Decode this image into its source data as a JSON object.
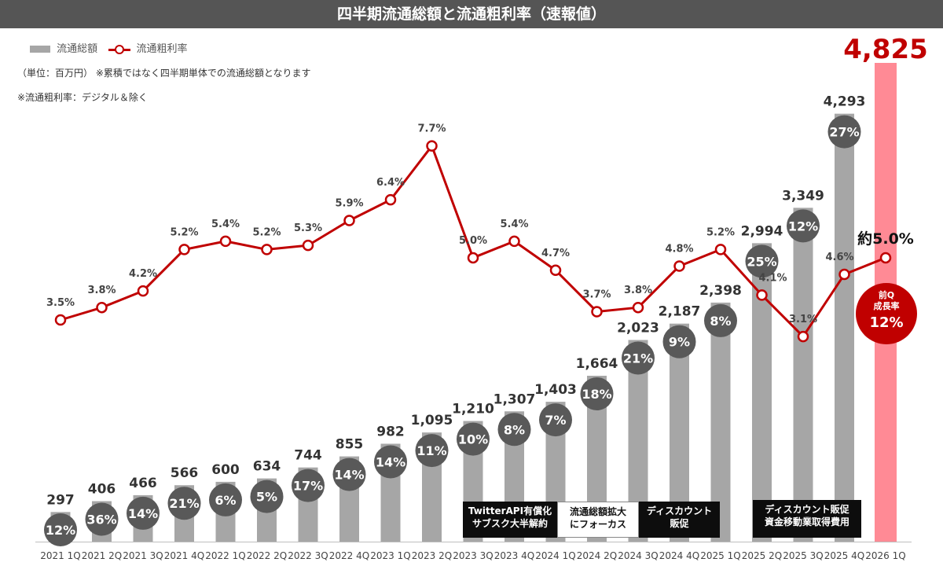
{
  "header": {
    "title": "四半期流通総額と流通粗利率（速報値）"
  },
  "legend": {
    "bar_label": "流通総額",
    "line_label": "流通粗利率"
  },
  "notes": {
    "unit_note": "（単位：百万円）  ※累積ではなく四半期単体での流通総額となります",
    "rate_note": "※流通粗利率：デジタル＆除く"
  },
  "colors": {
    "bar": "#a6a6a6",
    "highlight_bar": "#ff8a95",
    "line": "#c00000",
    "growth_bubble": "#595959",
    "title_bg": "#555555"
  },
  "chart_data": {
    "type": "bar",
    "categories": [
      "2021 1Q",
      "2021 2Q",
      "2021 3Q",
      "2021 4Q",
      "2022 1Q",
      "2022 2Q",
      "2022 3Q",
      "2022 4Q",
      "2023 1Q",
      "2023 2Q",
      "2023 3Q",
      "2023 4Q",
      "2024 1Q",
      "2024 2Q",
      "2024 3Q",
      "2024 4Q",
      "2025 1Q",
      "2025 2Q",
      "2025 3Q",
      "2025 4Q",
      "2026 1Q"
    ],
    "series": [
      {
        "name": "流通総額",
        "values": [
          297,
          406,
          466,
          566,
          600,
          634,
          744,
          855,
          982,
          1095,
          1210,
          1307,
          1403,
          1664,
          2023,
          2187,
          2398,
          2994,
          3349,
          4293,
          4825
        ],
        "labels": [
          "297",
          "406",
          "466",
          "566",
          "600",
          "634",
          "744",
          "855",
          "982",
          "1,095",
          "1,210",
          "1,307",
          "1,403",
          "1,664",
          "2,023",
          "2,187",
          "2,398",
          "2,994",
          "3,349",
          "4,293",
          "4,825"
        ]
      },
      {
        "name": "流通粗利率",
        "values": [
          3.5,
          3.8,
          4.2,
          5.2,
          5.4,
          5.2,
          5.3,
          5.9,
          6.4,
          7.7,
          5.0,
          5.4,
          4.7,
          3.7,
          3.8,
          4.8,
          5.2,
          4.1,
          3.1,
          4.6,
          5.0
        ],
        "labels": [
          "3.5%",
          "3.8%",
          "4.2%",
          "5.2%",
          "5.4%",
          "5.2%",
          "5.3%",
          "5.9%",
          "6.4%",
          "7.7%",
          "5.0%",
          "5.4%",
          "4.7%",
          "3.7%",
          "3.8%",
          "4.8%",
          "5.2%",
          "4.1%",
          "3.1%",
          "4.6%",
          "約5.0%"
        ]
      }
    ],
    "growth_rates": [
      "12%",
      "36%",
      "14%",
      "21%",
      "6%",
      "5%",
      "17%",
      "14%",
      "14%",
      "11%",
      "10%",
      "8%",
      "7%",
      "18%",
      "21%",
      "9%",
      "8%",
      "25%",
      "12%",
      "27%"
    ],
    "highlight_category": "2026 1Q",
    "annotations": [
      "TwitterAPI有償化\nサブスク大半解約",
      "流通総額拡大\nにフォーカス",
      "ディスカウント\n販促",
      "ディスカウント販促\n資金移動業取得費用"
    ],
    "growth_callout": {
      "label": "前Q\n成長率",
      "value": "12%"
    },
    "ylim_bar": [
      0,
      5000
    ],
    "ylim_line": [
      0,
      8
    ],
    "grid": false,
    "legend_position": "top-left"
  }
}
